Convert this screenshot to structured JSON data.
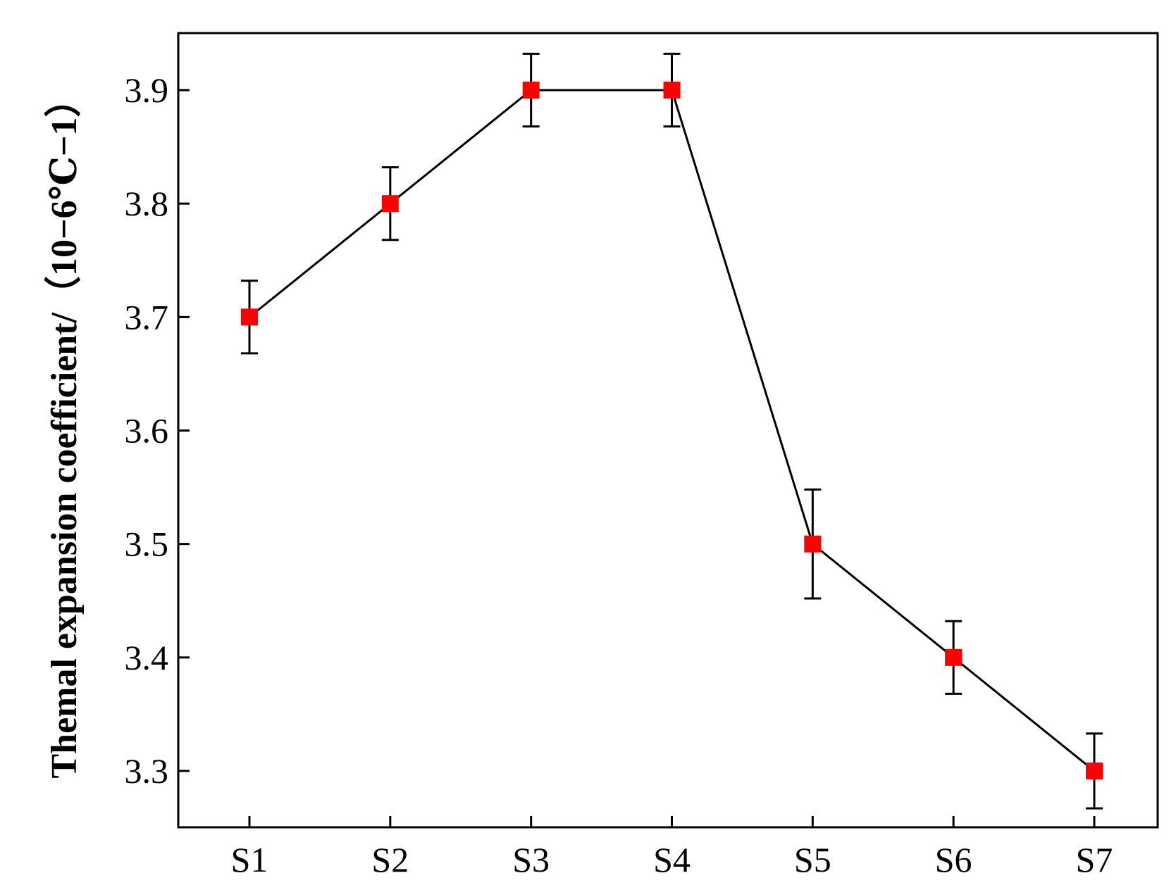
{
  "chart_data": {
    "type": "line",
    "title": "",
    "xlabel": "",
    "ylabel": "Themal expansion coefficient/（10−6℃−1）",
    "categories": [
      "S1",
      "S2",
      "S3",
      "S4",
      "S5",
      "S6",
      "S7"
    ],
    "series": [
      {
        "values": [
          3.7,
          3.8,
          3.9,
          3.9,
          3.5,
          3.4,
          3.3
        ],
        "error": [
          0.032,
          0.032,
          0.032,
          0.032,
          0.048,
          0.032,
          0.033
        ],
        "marker": "square",
        "marker_color": "#ff0000",
        "line_color": "#000000"
      }
    ],
    "ylim": [
      3.25,
      3.95
    ],
    "yticks": [
      3.3,
      3.4,
      3.5,
      3.6,
      3.7,
      3.8,
      3.9
    ],
    "ytick_labels": [
      "3.3",
      "3.4",
      "3.5",
      "3.6",
      "3.7",
      "3.8",
      "3.9"
    ],
    "grid": false,
    "legend": "none"
  }
}
